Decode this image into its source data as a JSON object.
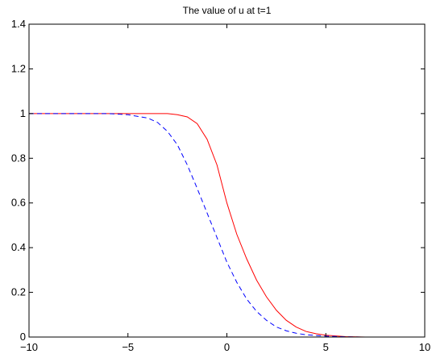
{
  "chart_data": {
    "type": "line",
    "title": "The value of u at t=1",
    "xlabel": "",
    "ylabel": "",
    "xlim": [
      -10,
      10
    ],
    "ylim": [
      0,
      1.4
    ],
    "x_ticks": [
      "−10",
      "−5",
      "0",
      "5",
      "10"
    ],
    "x_tick_values": [
      -10,
      -5,
      0,
      5,
      10
    ],
    "y_ticks": [
      "0",
      "0.2",
      "0.4",
      "0.6",
      "0.8",
      "1",
      "1.2",
      "1.4"
    ],
    "y_tick_values": [
      0,
      0.2,
      0.4,
      0.6,
      0.8,
      1.0,
      1.2,
      1.4
    ],
    "grid": false,
    "legend": "none",
    "series": [
      {
        "color": "#ff0000",
        "line_style": "solid",
        "x": [
          -10,
          -4,
          -3,
          -2.5,
          -2,
          -1.5,
          -1,
          -0.5,
          0,
          0.5,
          1,
          1.5,
          2,
          2.5,
          3,
          3.5,
          4,
          4.5,
          5,
          6,
          7,
          8,
          10
        ],
        "y": [
          1.0,
          1.0,
          1.0,
          0.995,
          0.985,
          0.955,
          0.885,
          0.77,
          0.6,
          0.46,
          0.35,
          0.255,
          0.18,
          0.12,
          0.075,
          0.045,
          0.025,
          0.015,
          0.008,
          0.002,
          0.0,
          0.0,
          0.0
        ]
      },
      {
        "color": "#0000ff",
        "line_style": "dashed",
        "x": [
          -10,
          -7,
          -6,
          -5,
          -4,
          -3.5,
          -3,
          -2.5,
          -2,
          -1.5,
          -1,
          -0.5,
          0,
          0.5,
          1,
          1.5,
          2,
          2.5,
          3,
          3.5,
          4,
          5,
          6,
          7,
          10
        ],
        "y": [
          1.0,
          1.0,
          1.0,
          0.995,
          0.98,
          0.96,
          0.92,
          0.86,
          0.77,
          0.665,
          0.555,
          0.445,
          0.335,
          0.245,
          0.17,
          0.115,
          0.075,
          0.045,
          0.028,
          0.017,
          0.01,
          0.004,
          0.001,
          0.0,
          0.0
        ]
      }
    ]
  }
}
